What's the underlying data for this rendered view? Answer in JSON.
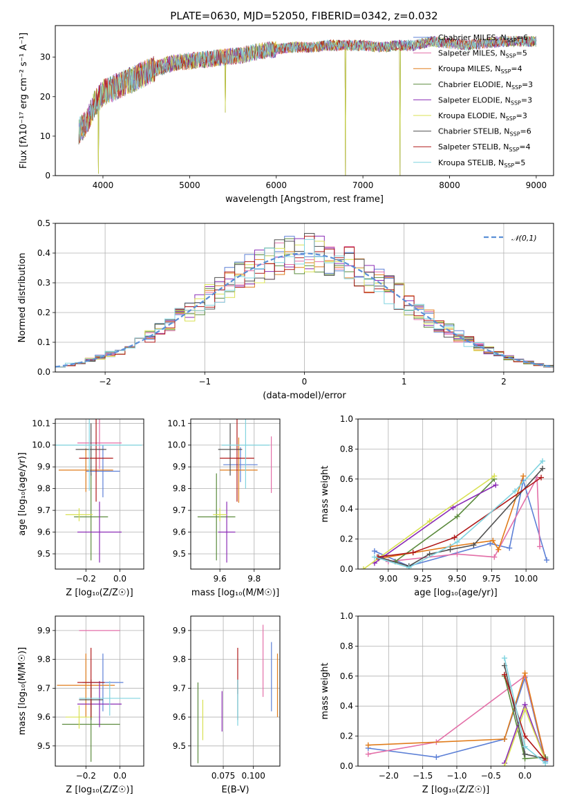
{
  "figure": {
    "title": "PLATE=0630, MJD=52050, FIBERID=0342, z=0.032"
  },
  "series_styles": [
    {
      "name": "Chabrier MILES, N_SSP=6",
      "label_main": "Chabrier MILES, N",
      "label_sub": "SSP",
      "label_tail": "=6",
      "color": "#5b7fd6"
    },
    {
      "name": "Salpeter MILES, N_SSP=5",
      "label_main": "Salpeter MILES, N",
      "label_sub": "SSP",
      "label_tail": "=5",
      "color": "#e36fa8"
    },
    {
      "name": "Kroupa MILES, N_SSP=4",
      "label_main": "Kroupa MILES, N",
      "label_sub": "SSP",
      "label_tail": "=4",
      "color": "#e07b1a"
    },
    {
      "name": "Chabrier ELODIE, N_SSP=3",
      "label_main": "Chabrier ELODIE, N",
      "label_sub": "SSP",
      "label_tail": "=3",
      "color": "#5a8a3c"
    },
    {
      "name": "Salpeter ELODIE, N_SSP=3",
      "label_main": "Salpeter ELODIE, N",
      "label_sub": "SSP",
      "label_tail": "=3",
      "color": "#8a2bb5"
    },
    {
      "name": "Kroupa ELODIE, N_SSP=3",
      "label_main": "Kroupa ELODIE, N",
      "label_sub": "SSP",
      "label_tail": "=3",
      "color": "#d8e050"
    },
    {
      "name": "Chabrier STELIB, N_SSP=6",
      "label_main": "Chabrier STELIB, N",
      "label_sub": "SSP",
      "label_tail": "=6",
      "color": "#505050"
    },
    {
      "name": "Salpeter STELIB, N_SSP=4",
      "label_main": "Salpeter STELIB, N",
      "label_sub": "SSP",
      "label_tail": "=4",
      "color": "#b01818"
    },
    {
      "name": "Kroupa STELIB, N_SSP=5",
      "label_main": "Kroupa STELIB, N",
      "label_sub": "SSP",
      "label_tail": "=5",
      "color": "#7fd3df"
    }
  ],
  "chart_data": [
    {
      "id": "spectrum",
      "type": "line",
      "xlabel": "wavelength [Angstrom, rest frame]",
      "ylabel": "Flux [fλ10⁻¹⁷ erg cm⁻² s⁻¹ A⁻¹]",
      "xlim": [
        3450,
        9200
      ],
      "ylim": [
        0,
        38
      ],
      "xticks": [
        4000,
        5000,
        6000,
        7000,
        8000,
        9000
      ],
      "yticks": [
        0,
        10,
        20,
        30
      ],
      "grid": false,
      "legend": "top-right",
      "spectrum_anchors": [
        [
          3700,
          11
        ],
        [
          3800,
          13
        ],
        [
          3900,
          18
        ],
        [
          4000,
          21
        ],
        [
          4200,
          23
        ],
        [
          4400,
          25
        ],
        [
          4600,
          27
        ],
        [
          4800,
          28.5
        ],
        [
          5000,
          29
        ],
        [
          5200,
          29.5
        ],
        [
          5400,
          30
        ],
        [
          5600,
          30.5
        ],
        [
          5800,
          31.5
        ],
        [
          6000,
          32
        ],
        [
          6200,
          32.5
        ],
        [
          6400,
          32.5
        ],
        [
          6600,
          33
        ],
        [
          6800,
          33
        ],
        [
          7000,
          33
        ],
        [
          7200,
          32.5
        ],
        [
          7400,
          33
        ],
        [
          7600,
          33
        ],
        [
          7800,
          34
        ],
        [
          8000,
          33.5
        ],
        [
          8200,
          33
        ],
        [
          8400,
          33.5
        ],
        [
          8600,
          34
        ],
        [
          8800,
          34
        ],
        [
          9000,
          34
        ]
      ],
      "dips": [
        {
          "x": 3950,
          "y": 0.5
        },
        {
          "x": 5410,
          "y": 16
        },
        {
          "x": 6800,
          "y": 0
        },
        {
          "x": 7430,
          "y": 0
        }
      ]
    },
    {
      "id": "residual_hist",
      "type": "bar",
      "xlabel": "(data-model)/error",
      "ylabel": "Normed distribution",
      "xlim": [
        -2.5,
        2.5
      ],
      "ylim": [
        0,
        0.5
      ],
      "xticks": [
        -2,
        -1,
        0,
        1,
        2
      ],
      "yticks": [
        0.0,
        0.1,
        0.2,
        0.3,
        0.4,
        0.5
      ],
      "grid": true,
      "legend": "top-right",
      "legend_label": "𝒩(0,1)",
      "bin_width": 0.1,
      "gaussian": {
        "mean": 0,
        "sigma": 1,
        "color": "#5b8fd6"
      }
    },
    {
      "id": "age_vs_Z",
      "type": "scatter",
      "xlabel": "Z [log₁₀(Z/Z☉)]",
      "ylabel": "age  [log₁₀(age/yr)]",
      "xlim": [
        -0.38,
        0.14
      ],
      "ylim": [
        9.43,
        10.12
      ],
      "xticks": [
        -0.2,
        0.0
      ],
      "yticks": [
        9.5,
        9.6,
        9.7,
        9.8,
        9.9,
        10.0,
        10.1
      ],
      "grid": true,
      "points": [
        {
          "x": -0.1,
          "y": 9.88,
          "xerr": 0.1,
          "yerr": 0.12,
          "series": 0
        },
        {
          "x": -0.12,
          "y": 10.01,
          "xerr": 0.13,
          "yerr": 0.12,
          "series": 1
        },
        {
          "x": -0.2,
          "y": 9.885,
          "xerr": 0.16,
          "yerr": 0.1,
          "series": 2
        },
        {
          "x": -0.17,
          "y": 9.67,
          "xerr": 0.1,
          "yerr": 0.2,
          "series": 3
        },
        {
          "x": -0.12,
          "y": 9.6,
          "xerr": 0.13,
          "yerr": 0.14,
          "series": 4
        },
        {
          "x": -0.24,
          "y": 9.68,
          "xerr": 0.08,
          "yerr": 0.03,
          "series": 5
        },
        {
          "x": -0.17,
          "y": 9.98,
          "xerr": 0.09,
          "yerr": 0.12,
          "series": 6
        },
        {
          "x": -0.14,
          "y": 9.94,
          "xerr": 0.1,
          "yerr": 0.2,
          "series": 7
        },
        {
          "x": -0.18,
          "y": 10.0,
          "xerr": 0.31,
          "yerr": 0.21,
          "series": 8
        }
      ]
    },
    {
      "id": "age_vs_mass",
      "type": "scatter",
      "xlabel": "mass [log₁₀(M/M☉)]",
      "ylabel": "",
      "xlim": [
        9.43,
        9.95
      ],
      "ylim": [
        9.43,
        10.12
      ],
      "xticks": [
        9.6,
        9.8
      ],
      "yticks": [
        9.5,
        9.6,
        9.7,
        9.8,
        9.9,
        10.0,
        10.1
      ],
      "grid": true,
      "points": [
        {
          "x": 9.72,
          "y": 9.91,
          "xerr": 0.1,
          "yerr": 0.08,
          "series": 0
        },
        {
          "x": 9.9,
          "y": 9.91,
          "xerr": 0.0,
          "yerr": 0.13,
          "series": 1
        },
        {
          "x": 9.71,
          "y": 9.885,
          "xerr": 0.11,
          "yerr": 0.15,
          "series": 2
        },
        {
          "x": 9.58,
          "y": 9.67,
          "xerr": 0.11,
          "yerr": 0.2,
          "series": 3
        },
        {
          "x": 9.64,
          "y": 9.6,
          "xerr": 0.05,
          "yerr": 0.14,
          "series": 4
        },
        {
          "x": 9.6,
          "y": 9.68,
          "xerr": 0.04,
          "yerr": 0.03,
          "series": 5
        },
        {
          "x": 9.66,
          "y": 9.98,
          "xerr": 0.07,
          "yerr": 0.12,
          "series": 6
        },
        {
          "x": 9.7,
          "y": 9.94,
          "xerr": 0.1,
          "yerr": 0.2,
          "series": 7
        },
        {
          "x": 9.75,
          "y": 10.0,
          "xerr": 0.14,
          "yerr": 0.2,
          "series": 8
        }
      ]
    },
    {
      "id": "massweight_vs_age",
      "type": "line",
      "xlabel": "age  [log₁₀(age/yr)]",
      "ylabel": "mass weight",
      "xlim": [
        8.78,
        10.2
      ],
      "ylim": [
        0,
        1.0
      ],
      "xticks": [
        9.0,
        9.25,
        9.5,
        9.75,
        10.0
      ],
      "yticks": [
        0.0,
        0.2,
        0.4,
        0.6,
        0.8,
        1.0
      ],
      "grid": true,
      "series": [
        {
          "style": 0,
          "x": [
            8.9,
            9.15,
            9.74,
            9.88,
            9.98,
            10.15
          ],
          "y": [
            0.12,
            0.02,
            0.17,
            0.14,
            0.59,
            0.06
          ]
        },
        {
          "style": 1,
          "x": [
            9.0,
            9.5,
            9.77,
            10.08,
            10.1
          ],
          "y": [
            0.05,
            0.1,
            0.08,
            0.61,
            0.15
          ]
        },
        {
          "style": 2,
          "x": [
            8.93,
            9.45,
            9.76,
            9.8,
            9.98
          ],
          "y": [
            0.07,
            0.15,
            0.19,
            0.13,
            0.62
          ]
        },
        {
          "style": 3,
          "x": [
            9.05,
            9.5,
            9.77
          ],
          "y": [
            0.05,
            0.35,
            0.6
          ]
        },
        {
          "style": 4,
          "x": [
            8.9,
            9.47,
            9.78
          ],
          "y": [
            0.04,
            0.41,
            0.56
          ]
        },
        {
          "style": 5,
          "x": [
            8.82,
            9.3,
            9.77
          ],
          "y": [
            0.0,
            0.32,
            0.62
          ]
        },
        {
          "style": 6,
          "x": [
            8.93,
            9.15,
            9.3,
            9.45,
            9.62,
            10.12
          ],
          "y": [
            0.08,
            0.02,
            0.1,
            0.13,
            0.16,
            0.67
          ]
        },
        {
          "style": 7,
          "x": [
            8.92,
            9.18,
            9.48,
            10.11
          ],
          "y": [
            0.08,
            0.11,
            0.21,
            0.61
          ]
        },
        {
          "style": 8,
          "x": [
            8.9,
            9.15,
            9.5,
            9.92,
            10.12
          ],
          "y": [
            0.08,
            0.01,
            0.18,
            0.52,
            0.72
          ]
        }
      ]
    },
    {
      "id": "mass_vs_Z",
      "type": "scatter",
      "xlabel": "Z [log₁₀(Z/Z☉)]",
      "ylabel": "mass [log₁₀(M/M☉)]",
      "xlim": [
        -0.38,
        0.14
      ],
      "ylim": [
        9.43,
        9.95
      ],
      "xticks": [
        -0.2,
        0.0
      ],
      "yticks": [
        9.5,
        9.6,
        9.7,
        9.8,
        9.9
      ],
      "grid": true,
      "points": [
        {
          "x": -0.1,
          "y": 9.72,
          "xerr": 0.12,
          "yerr": 0.1,
          "series": 0
        },
        {
          "x": -0.12,
          "y": 9.9,
          "xerr": 0.12,
          "yerr": 0.0,
          "series": 1
        },
        {
          "x": -0.2,
          "y": 9.71,
          "xerr": 0.17,
          "yerr": 0.11,
          "series": 2
        },
        {
          "x": -0.17,
          "y": 9.575,
          "xerr": 0.17,
          "yerr": 0.13,
          "series": 3
        },
        {
          "x": -0.12,
          "y": 9.645,
          "xerr": 0.13,
          "yerr": 0.08,
          "series": 4
        },
        {
          "x": -0.24,
          "y": 9.6,
          "xerr": 0.08,
          "yerr": 0.04,
          "series": 5
        },
        {
          "x": -0.17,
          "y": 9.66,
          "xerr": 0.07,
          "yerr": 0.07,
          "series": 6
        },
        {
          "x": -0.17,
          "y": 9.72,
          "xerr": 0.08,
          "yerr": 0.12,
          "series": 7
        },
        {
          "x": -0.06,
          "y": 9.665,
          "xerr": 0.18,
          "yerr": 0.06,
          "series": 8
        }
      ]
    },
    {
      "id": "mass_vs_ebv",
      "type": "scatter",
      "xlabel": "E(B-V)",
      "ylabel": "",
      "xlim": [
        0.048,
        0.122
      ],
      "ylim": [
        9.43,
        9.95
      ],
      "xticks": [
        0.075,
        0.1
      ],
      "yticks": [
        9.5,
        9.6,
        9.7,
        9.8,
        9.9
      ],
      "grid": true,
      "points": [
        {
          "x": 0.115,
          "y": 9.74,
          "yerr": 0.12,
          "series": 0
        },
        {
          "x": 0.108,
          "y": 9.795,
          "yerr": 0.125,
          "series": 1
        },
        {
          "x": 0.12,
          "y": 9.71,
          "yerr": 0.11,
          "series": 2
        },
        {
          "x": 0.054,
          "y": 9.58,
          "yerr": 0.14,
          "series": 3
        },
        {
          "x": 0.074,
          "y": 9.62,
          "yerr": 0.07,
          "series": 4
        },
        {
          "x": 0.058,
          "y": 9.59,
          "yerr": 0.07,
          "series": 5
        },
        {
          "x": 0.087,
          "y": 9.66,
          "yerr": 0.07,
          "series": 6
        },
        {
          "x": 0.087,
          "y": 9.76,
          "yerr": 0.08,
          "series": 7
        },
        {
          "x": 0.087,
          "y": 9.65,
          "yerr": 0.08,
          "series": 8
        }
      ]
    },
    {
      "id": "massweight_vs_Z",
      "type": "line",
      "xlabel": "Z [log₁₀(Z/Z☉)]",
      "ylabel": "mass weight",
      "xlim": [
        -2.45,
        0.42
      ],
      "ylim": [
        0,
        1.0
      ],
      "xticks": [
        -2.0,
        -1.5,
        -1.0,
        -0.5,
        0.0
      ],
      "yticks": [
        0.0,
        0.2,
        0.4,
        0.6,
        0.8,
        1.0
      ],
      "grid": true,
      "series": [
        {
          "style": 0,
          "x": [
            -2.3,
            -1.3,
            -0.3,
            0.0,
            0.3
          ],
          "y": [
            0.12,
            0.06,
            0.18,
            0.59,
            0.03
          ]
        },
        {
          "style": 1,
          "x": [
            -2.3,
            -1.3,
            0.0,
            0.3
          ],
          "y": [
            0.08,
            0.16,
            0.6,
            0.05
          ]
        },
        {
          "style": 2,
          "x": [
            -2.3,
            -0.3,
            0.0,
            0.3
          ],
          "y": [
            0.14,
            0.18,
            0.62,
            0.04
          ]
        },
        {
          "style": 3,
          "x": [
            -0.3,
            0.0,
            0.3
          ],
          "y": [
            0.6,
            0.05,
            0.06
          ]
        },
        {
          "style": 4,
          "x": [
            -0.3,
            0.0,
            0.3
          ],
          "y": [
            0.02,
            0.41,
            0.04
          ]
        },
        {
          "style": 5,
          "x": [
            -0.3,
            0.0,
            0.3
          ],
          "y": [
            0.0,
            0.38,
            0.04
          ]
        },
        {
          "style": 6,
          "x": [
            -0.3,
            0.0,
            0.3
          ],
          "y": [
            0.67,
            0.08,
            0.05
          ]
        },
        {
          "style": 7,
          "x": [
            -0.3,
            0.0,
            0.3
          ],
          "y": [
            0.61,
            0.2,
            0.04
          ]
        },
        {
          "style": 8,
          "x": [
            -0.3,
            0.0,
            0.3
          ],
          "y": [
            0.72,
            0.13,
            0.02
          ]
        }
      ]
    }
  ]
}
